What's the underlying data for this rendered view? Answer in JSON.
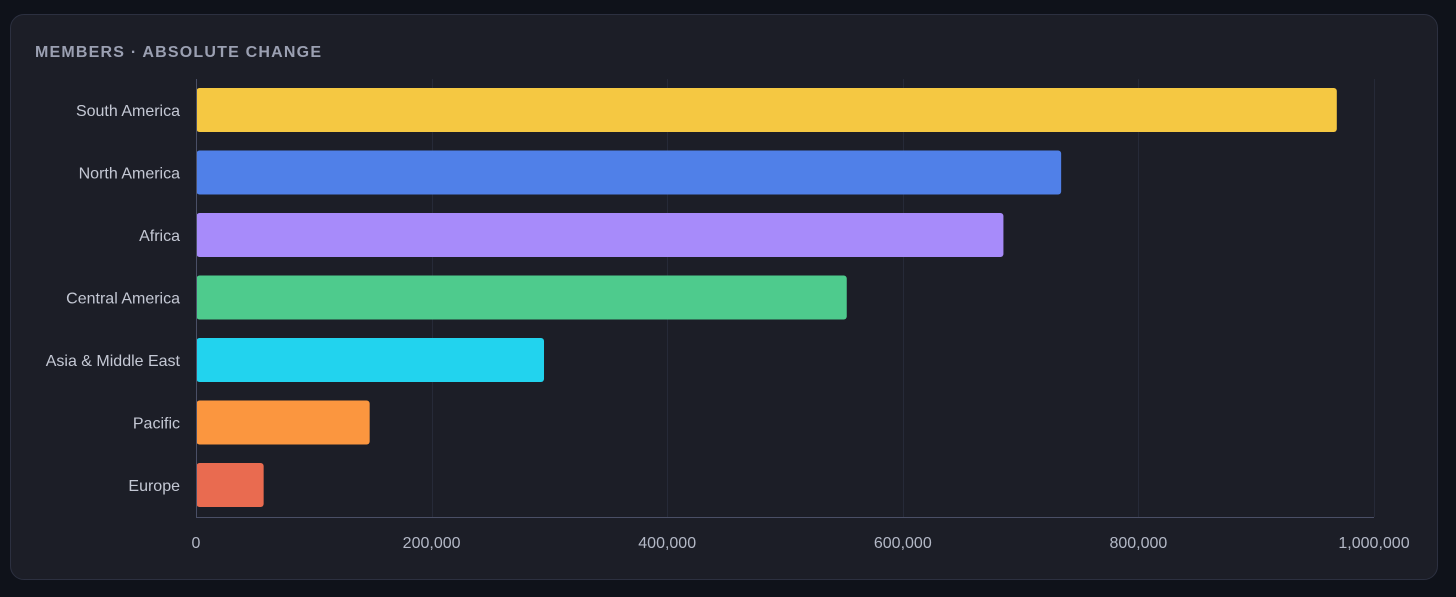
{
  "chart_data": {
    "type": "bar",
    "orientation": "horizontal",
    "title": "MEMBERS · ABSOLUTE CHANGE",
    "xlabel": "",
    "ylabel": "",
    "xlim": [
      0,
      1000000
    ],
    "grid": true,
    "legend": "none",
    "ticks": [
      0,
      200000,
      400000,
      600000,
      800000,
      1000000
    ],
    "tick_labels": [
      "0",
      "200,000",
      "400,000",
      "600,000",
      "800,000",
      "1,000,000"
    ],
    "categories": [
      "South America",
      "North America",
      "Africa",
      "Central America",
      "Asia & Middle East",
      "Pacific",
      "Europe"
    ],
    "values": [
      968000,
      734000,
      685000,
      552000,
      295000,
      147000,
      57000
    ],
    "colors": [
      "#f5c842",
      "#5080e8",
      "#a78bfa",
      "#4ecb8d",
      "#22d3ee",
      "#fb963f",
      "#e96b50"
    ]
  }
}
